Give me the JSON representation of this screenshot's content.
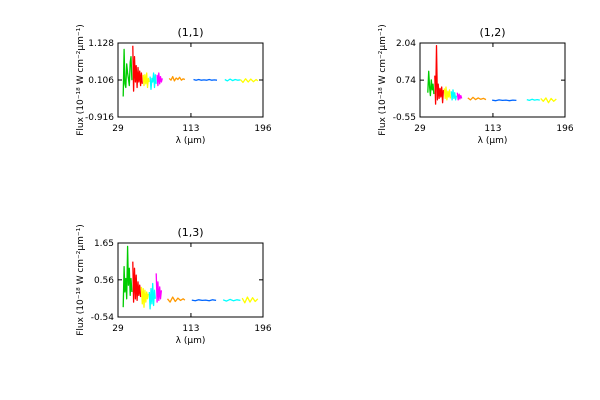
{
  "colors": {
    "axes": "#000000",
    "segments": [
      "#00cc00",
      "#ff0000",
      "#ffff00",
      "#00ffff",
      "#ff00ff",
      "#ff9900",
      "#0066ff",
      "#00ffff",
      "#ffff00"
    ]
  },
  "chart_data": [
    {
      "type": "line",
      "title": "(1,1)",
      "xlabel": "λ (μm)",
      "ylabel": "Flux (10⁻¹⁸ W cm⁻²μm⁻¹)",
      "xlim": [
        29,
        196
      ],
      "ylim": [
        -0.916,
        1.128
      ],
      "xticks": [
        "29",
        "113",
        "196"
      ],
      "yticks": [
        "-0.916",
        "0.106",
        "1.128"
      ],
      "series": [
        {
          "color": "#00cc00",
          "x": [
            35,
            36,
            37,
            38,
            39,
            40,
            41,
            42,
            43,
            44,
            45
          ],
          "y": [
            -0.35,
            0.95,
            0.0,
            -0.1,
            0.55,
            0.3,
            0.15,
            -0.05,
            0.6,
            0.75,
            0.1
          ]
        },
        {
          "color": "#ff0000",
          "x": [
            46,
            47,
            48,
            49,
            50,
            51,
            52,
            53,
            54,
            55,
            56,
            57
          ],
          "y": [
            1.05,
            -0.2,
            0.75,
            0.05,
            0.5,
            -0.1,
            0.45,
            0.05,
            0.35,
            -0.05,
            0.3,
            0.0
          ]
        },
        {
          "color": "#ffff00",
          "x": [
            58,
            59,
            60,
            61,
            62,
            63,
            64,
            65
          ],
          "y": [
            0.25,
            -0.05,
            0.25,
            0.0,
            0.3,
            -0.1,
            0.15,
            0.05
          ]
        },
        {
          "color": "#00ffff",
          "x": [
            66,
            67,
            68,
            69,
            70,
            71,
            72,
            73
          ],
          "y": [
            0.2,
            -0.15,
            0.15,
            0.05,
            0.3,
            -0.1,
            0.25,
            0.0
          ]
        },
        {
          "color": "#ff00ff",
          "x": [
            74,
            75,
            76,
            77,
            78,
            79,
            80
          ],
          "y": [
            0.25,
            -0.05,
            0.3,
            0.0,
            0.2,
            0.05,
            0.15
          ]
        },
        {
          "color": "#ff9900",
          "x": [
            88,
            90,
            92,
            94,
            96,
            98,
            100,
            102,
            104,
            106
          ],
          "y": [
            0.15,
            0.1,
            0.2,
            0.08,
            0.16,
            0.12,
            0.18,
            0.1,
            0.14,
            0.12
          ]
        },
        {
          "color": "#0066ff",
          "x": [
            116,
            119,
            122,
            125,
            128,
            131,
            134,
            137,
            140,
            143
          ],
          "y": [
            0.12,
            0.1,
            0.12,
            0.1,
            0.11,
            0.1,
            0.12,
            0.1,
            0.11,
            0.1
          ]
        },
        {
          "color": "#00ffff",
          "x": [
            152,
            155,
            158,
            161,
            164,
            167,
            170
          ],
          "y": [
            0.12,
            0.08,
            0.13,
            0.09,
            0.12,
            0.1,
            0.11
          ]
        },
        {
          "color": "#ffff00",
          "x": [
            170,
            173,
            176,
            179,
            182,
            185,
            188,
            190
          ],
          "y": [
            0.12,
            0.04,
            0.14,
            0.05,
            0.13,
            0.06,
            0.12,
            0.08
          ]
        }
      ]
    },
    {
      "type": "line",
      "title": "(1,2)",
      "xlabel": "λ (μm)",
      "ylabel": "Flux (10⁻¹⁸ W cm⁻²μm⁻¹)",
      "xlim": [
        29,
        196
      ],
      "ylim": [
        -0.55,
        2.04
      ],
      "xticks": [
        "29",
        "113",
        "196"
      ],
      "yticks": [
        "-0.55",
        "0.74",
        "2.04"
      ],
      "series": [
        {
          "color": "#00cc00",
          "x": [
            38,
            39,
            40,
            41,
            42,
            43,
            44,
            45
          ],
          "y": [
            0.3,
            1.05,
            0.5,
            0.2,
            0.75,
            0.4,
            0.6,
            0.25
          ]
        },
        {
          "color": "#ff0000",
          "x": [
            46,
            47,
            48,
            49,
            50,
            51,
            52,
            53,
            54,
            55,
            56
          ],
          "y": [
            0.9,
            -0.1,
            1.95,
            0.05,
            0.6,
            0.1,
            0.45,
            0.15,
            0.5,
            -0.05,
            0.4
          ]
        },
        {
          "color": "#ffff00",
          "x": [
            57,
            58,
            59,
            60,
            61,
            62,
            63,
            64
          ],
          "y": [
            0.45,
            0.1,
            0.5,
            0.05,
            0.35,
            0.15,
            0.4,
            0.1
          ]
        },
        {
          "color": "#00ffff",
          "x": [
            65,
            66,
            67,
            68,
            69,
            70,
            71
          ],
          "y": [
            0.35,
            0.05,
            0.4,
            0.1,
            0.3,
            0.05,
            0.2
          ]
        },
        {
          "color": "#ff00ff",
          "x": [
            72,
            73,
            74,
            75,
            76,
            77
          ],
          "y": [
            0.3,
            0.05,
            0.25,
            0.08,
            0.2,
            0.1
          ]
        },
        {
          "color": "#ff9900",
          "x": [
            84,
            87,
            90,
            93,
            96,
            99,
            102,
            105
          ],
          "y": [
            0.12,
            0.05,
            0.14,
            0.06,
            0.12,
            0.07,
            0.1,
            0.06
          ]
        },
        {
          "color": "#0066ff",
          "x": [
            112,
            116,
            120,
            124,
            128,
            132,
            136,
            140
          ],
          "y": [
            0.04,
            0.02,
            0.05,
            0.03,
            0.04,
            0.02,
            0.04,
            0.03
          ]
        },
        {
          "color": "#00ffff",
          "x": [
            152,
            155,
            158,
            161,
            164,
            167
          ],
          "y": [
            0.06,
            0.03,
            0.07,
            0.04,
            0.06,
            0.04
          ]
        },
        {
          "color": "#ffff00",
          "x": [
            168,
            171,
            174,
            177,
            180,
            183,
            186
          ],
          "y": [
            0.1,
            0.0,
            0.12,
            -0.05,
            0.1,
            0.0,
            0.08
          ]
        }
      ]
    },
    {
      "type": "line",
      "title": "(1,3)",
      "xlabel": "λ (μm)",
      "ylabel": "Flux (10⁻¹⁸ W cm⁻²μm⁻¹)",
      "xlim": [
        29,
        196
      ],
      "ylim": [
        -0.54,
        1.65
      ],
      "xticks": [
        "29",
        "113",
        "196"
      ],
      "yticks": [
        "-0.54",
        "0.56",
        "1.65"
      ],
      "series": [
        {
          "color": "#00cc00",
          "x": [
            35,
            36,
            37,
            38,
            39,
            40,
            41,
            42,
            43,
            44,
            45
          ],
          "y": [
            -0.25,
            0.95,
            0.2,
            0.6,
            0.0,
            1.55,
            0.4,
            0.9,
            0.1,
            0.6,
            0.2
          ]
        },
        {
          "color": "#ff0000",
          "x": [
            46,
            47,
            48,
            49,
            50,
            51,
            52,
            53,
            54,
            55
          ],
          "y": [
            1.1,
            -0.1,
            0.9,
            0.0,
            0.7,
            -0.05,
            0.5,
            0.1,
            0.4,
            0.05
          ]
        },
        {
          "color": "#ffff00",
          "x": [
            56,
            57,
            58,
            59,
            60,
            61,
            62,
            63,
            64
          ],
          "y": [
            0.35,
            -0.15,
            0.3,
            -0.25,
            0.25,
            -0.1,
            0.2,
            0.0,
            0.15
          ]
        },
        {
          "color": "#00ffff",
          "x": [
            65,
            66,
            67,
            68,
            69,
            70,
            71,
            72
          ],
          "y": [
            0.2,
            -0.3,
            0.3,
            -0.15,
            0.45,
            -0.2,
            0.25,
            0.0
          ]
        },
        {
          "color": "#ff00ff",
          "x": [
            73,
            74,
            75,
            76,
            77,
            78,
            79
          ],
          "y": [
            0.75,
            -0.1,
            0.5,
            -0.05,
            0.35,
            0.0,
            0.25
          ]
        },
        {
          "color": "#ff9900",
          "x": [
            86,
            89,
            92,
            95,
            98,
            101,
            104,
            106
          ],
          "y": [
            0.0,
            -0.1,
            0.05,
            -0.08,
            0.02,
            -0.05,
            0.0,
            -0.04
          ]
        },
        {
          "color": "#0066ff",
          "x": [
            114,
            118,
            122,
            126,
            130,
            134,
            138,
            142
          ],
          "y": [
            -0.04,
            -0.06,
            -0.03,
            -0.05,
            -0.04,
            -0.06,
            -0.03,
            -0.05
          ]
        },
        {
          "color": "#00ffff",
          "x": [
            150,
            154,
            158,
            162,
            166,
            170
          ],
          "y": [
            -0.03,
            -0.07,
            -0.02,
            -0.06,
            -0.03,
            -0.05
          ]
        },
        {
          "color": "#ffff00",
          "x": [
            172,
            175,
            178,
            181,
            184,
            187,
            190
          ],
          "y": [
            0.02,
            -0.12,
            0.05,
            -0.1,
            0.03,
            -0.08,
            0.0
          ]
        }
      ]
    }
  ]
}
